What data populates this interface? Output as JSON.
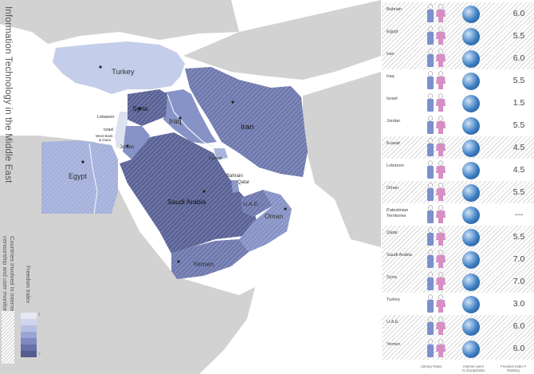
{
  "title": "Information Technology in the Middle East",
  "legend": {
    "note_line1": "Countries involved in internet",
    "note_line2": "censorship and user monitoring",
    "index_label": "Freedom Index",
    "scale_top": "1",
    "scale_bottom": "7"
  },
  "map_labels": {
    "turkey": "Turkey",
    "syria": "Syria",
    "lebanon": "Lebanon",
    "israel": "Israel",
    "west_bank": "West Bank",
    "gaza": "& Gaza",
    "jordan": "Jordan",
    "iraq": "Iraq",
    "iran": "Iran",
    "kuwait": "Kuwait",
    "bahrain": "Bahrain",
    "qatar": "Qatar",
    "egypt": "Egypt",
    "saudi": "Saudi Arabia",
    "uae": "U.A.E.",
    "oman": "Oman",
    "yemen": "Yemen"
  },
  "colors": {
    "land": "#d2d2d2",
    "water": "#ffffff",
    "f1": "#dde2f1",
    "f3": "#c4cde9",
    "f4": "#a5b0db",
    "f5": "#8792c6",
    "f6": "#6f79ae",
    "f7": "#5a6296",
    "male": "#7b90cd",
    "female": "#d68fc4",
    "globe": "#3d7ec2"
  },
  "columns": {
    "literacy": "Literacy Rates",
    "internet_line1": "Internet users",
    "internet_line2": "% of population",
    "freedom_line1": "Freedom Index #",
    "freedom_line2": "Ranking"
  },
  "countries": [
    {
      "name": "Bahrain",
      "freedom": "6.0",
      "hatch": true
    },
    {
      "name": "Egypt",
      "freedom": "5.5",
      "hatch": true
    },
    {
      "name": "Iran",
      "freedom": "6.0",
      "hatch": true
    },
    {
      "name": "Iraq",
      "freedom": "5.5",
      "hatch": false
    },
    {
      "name": "Israel",
      "freedom": "1.5",
      "hatch": false
    },
    {
      "name": "Jordan",
      "freedom": "5.5",
      "hatch": false
    },
    {
      "name": "Kuwait",
      "freedom": "4.5",
      "hatch": true
    },
    {
      "name": "Lebanon",
      "freedom": "4.5",
      "hatch": false
    },
    {
      "name": "Oman",
      "freedom": "5.5",
      "hatch": true
    },
    {
      "name": "Palestinian Territories",
      "freedom": "---",
      "hatch": false
    },
    {
      "name": "Qatar",
      "freedom": "5.5",
      "hatch": true
    },
    {
      "name": "Saudi Arabia",
      "freedom": "7.0",
      "hatch": true
    },
    {
      "name": "Syria",
      "freedom": "7.0",
      "hatch": true
    },
    {
      "name": "Turkey",
      "freedom": "3.0",
      "hatch": false
    },
    {
      "name": "U.A.E.",
      "freedom": "6.0",
      "hatch": true
    },
    {
      "name": "Yemen",
      "freedom": "6.0",
      "hatch": true
    }
  ]
}
